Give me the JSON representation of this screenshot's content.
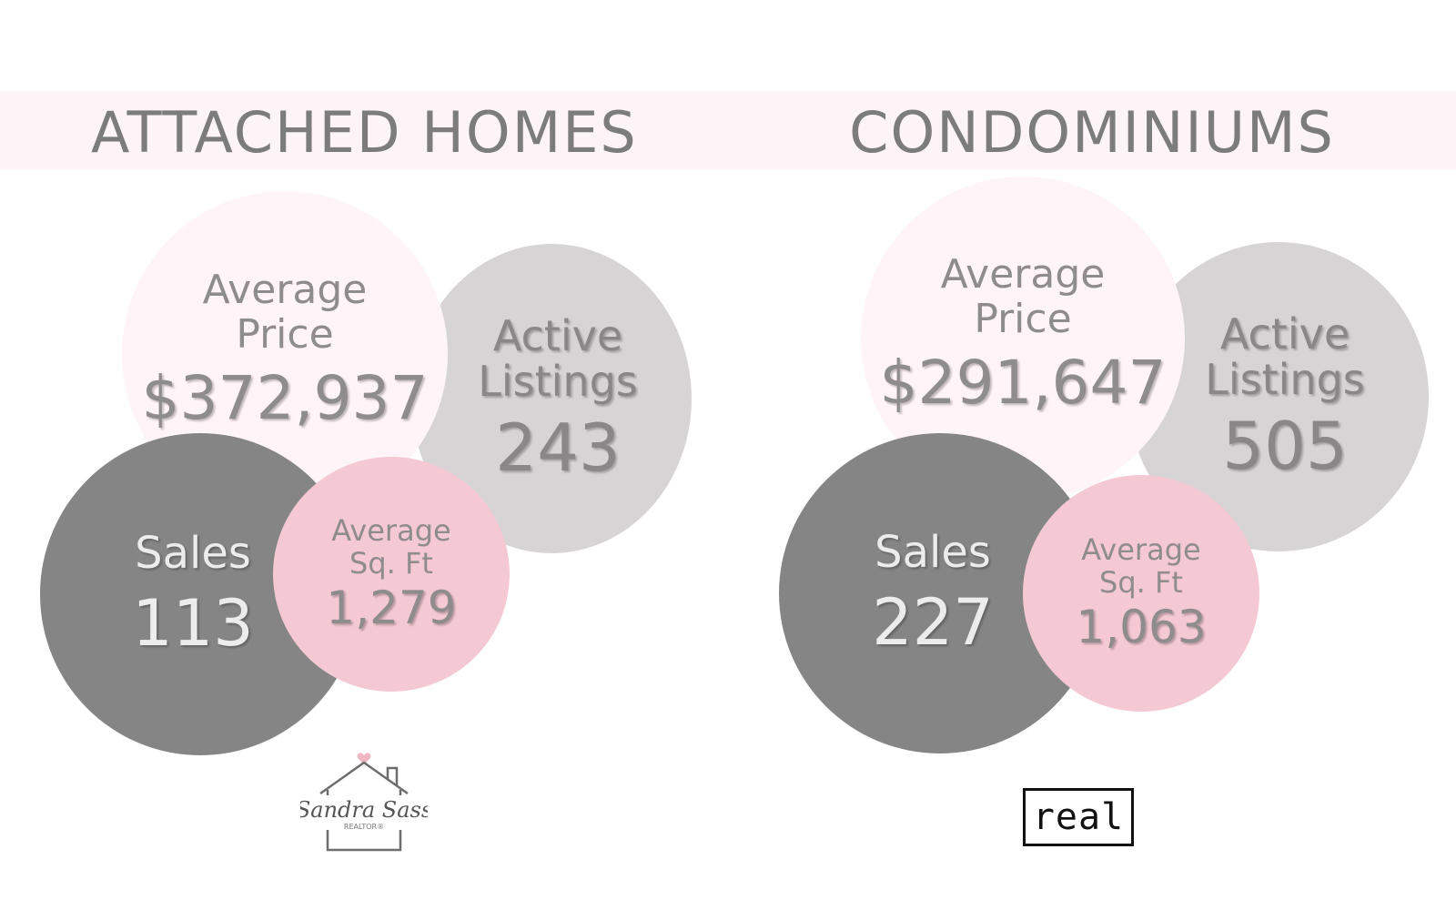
{
  "left": {
    "title": "ATTACHED HOMES",
    "active_label_1": "Active",
    "active_label_2": "Listings",
    "active_value": "243",
    "price_label_1": "Average",
    "price_label_2": "Price",
    "price_value": "$372,937",
    "sales_label": "Sales",
    "sales_value": "113",
    "sqft_label_1": "Average",
    "sqft_label_2": "Sq. Ft",
    "sqft_value": "1,279"
  },
  "right": {
    "title": "CONDOMINIUMS",
    "active_label_1": "Active",
    "active_label_2": "Listings",
    "active_value": "505",
    "price_label_1": "Average",
    "price_label_2": "Price",
    "price_value": "$291,647",
    "sales_label": "Sales",
    "sales_value": "227",
    "sqft_label_1": "Average",
    "sqft_label_2": "Sq. Ft",
    "sqft_value": "1,063"
  },
  "logos": {
    "sandra_name": "Sandra Sass",
    "sandra_sub": "REALTOR®",
    "real": "real"
  },
  "colors": {
    "band": "#fdf4f7",
    "title_text": "#7c7c7c",
    "light_gray_bubble": "#d7d4d6",
    "dark_gray_bubble": "#858585",
    "pale_pink_bubble": "#fff4f8",
    "pink_bubble": "#f4c9d4",
    "heart": "#f0b7c4"
  }
}
